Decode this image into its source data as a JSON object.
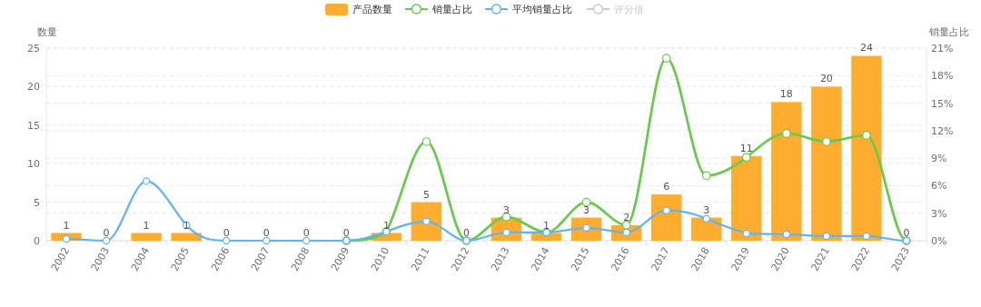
{
  "chart_data": {
    "type": "bar",
    "categories": [
      "2002",
      "2003",
      "2004",
      "2005",
      "2006",
      "2007",
      "2008",
      "2009",
      "2010",
      "2011",
      "2012",
      "2013",
      "2014",
      "2015",
      "2016",
      "2017",
      "2018",
      "2019",
      "2020",
      "2021",
      "2022",
      "2023"
    ],
    "ylabel": "数量",
    "y2label": "销量占比",
    "ylim": [
      0,
      25
    ],
    "yticks": [
      0,
      5,
      10,
      15,
      20,
      25
    ],
    "y2lim": [
      0,
      21
    ],
    "y2ticks": [
      {
        "value": 0,
        "label": "0%"
      },
      {
        "value": 3,
        "label": "3%"
      },
      {
        "value": 6,
        "label": "6%"
      },
      {
        "value": 9,
        "label": "9%"
      },
      {
        "value": 12,
        "label": "12%"
      },
      {
        "value": 15,
        "label": "15%"
      },
      {
        "value": 18,
        "label": "18%"
      },
      {
        "value": 21,
        "label": "21%"
      }
    ],
    "series": [
      {
        "name": "产品数量",
        "color": "#ffad2e",
        "values": [
          1,
          0,
          1,
          1,
          0,
          0,
          0,
          0,
          1,
          5,
          0,
          3,
          1,
          3,
          2,
          6,
          3,
          11,
          18,
          20,
          24,
          0
        ],
        "value_labels": [
          "1",
          "0",
          "1",
          "1",
          "0",
          "0",
          "0",
          "0",
          "1",
          "5",
          "0",
          "3",
          "1",
          "3",
          "2",
          "6",
          "3",
          "11",
          "18",
          "20",
          "24",
          "0"
        ]
      },
      {
        "name": "销量占比",
        "type": "line",
        "axis": "y2",
        "color": "#6cc94f",
        "values": [
          null,
          null,
          null,
          null,
          null,
          null,
          null,
          0,
          1.0,
          10.8,
          0,
          2.6,
          0.9,
          4.2,
          1.7,
          19.9,
          7.1,
          9.1,
          11.7,
          10.8,
          11.5,
          0
        ]
      },
      {
        "name": "平均销量占比",
        "type": "line",
        "axis": "y2",
        "color": "#62b4f0",
        "values": [
          0.2,
          0,
          6.5,
          1.7,
          0,
          0,
          0,
          0,
          1.0,
          2.1,
          0,
          0.9,
          0.9,
          1.4,
          0.9,
          3.3,
          2.4,
          0.8,
          0.7,
          0.5,
          0.5,
          0
        ]
      },
      {
        "name": "评分值",
        "type": "line",
        "axis": "y2",
        "color": "#cccccc",
        "values": [
          null,
          null,
          null,
          null,
          null,
          null,
          null,
          null,
          null,
          null,
          null,
          null,
          null,
          null,
          null,
          null,
          null,
          null,
          null,
          null,
          null,
          null
        ]
      }
    ],
    "grid": true,
    "legend": "top",
    "marker": "circle",
    "line_style": "solid"
  }
}
